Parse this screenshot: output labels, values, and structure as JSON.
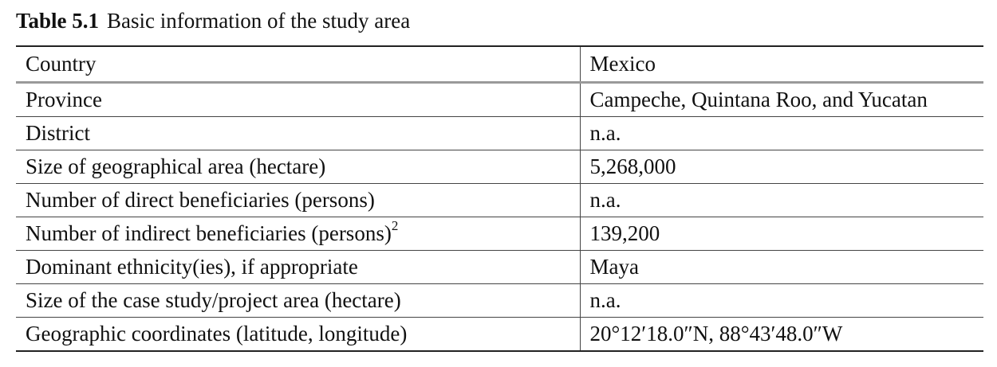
{
  "caption": {
    "number": "Table 5.1",
    "title": "Basic information of the study area"
  },
  "table": {
    "header": {
      "label": "Country",
      "value": "Mexico"
    },
    "rows": [
      {
        "label": "Province",
        "value": "Campeche, Quintana Roo, and Yucatan"
      },
      {
        "label": "District",
        "value": "n.a."
      },
      {
        "label": "Size of geographical area (hectare)",
        "value": "5,268,000"
      },
      {
        "label": "Number of direct beneficiaries (persons)",
        "value": "n.a."
      },
      {
        "label": "Number of indirect beneficiaries (persons)",
        "footnote": "2",
        "value": "139,200"
      },
      {
        "label": "Dominant ethnicity(ies), if appropriate",
        "value": "Maya"
      },
      {
        "label": "Size of the case study/project area (hectare)",
        "value": "n.a."
      },
      {
        "label": "Geographic coordinates (latitude, longitude)",
        "value": "20°12′18.0″N, 88°43′48.0″W"
      }
    ]
  }
}
